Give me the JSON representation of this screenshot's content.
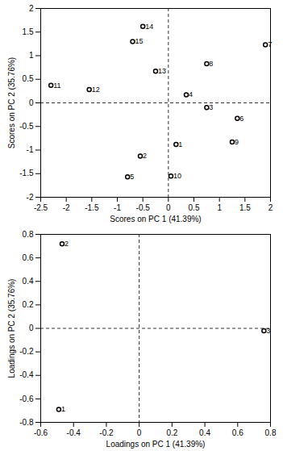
{
  "chart_data": [
    {
      "type": "scatter",
      "x_label": "Scores on PC 1 (41.39%)",
      "y_label": "Scores on PC 2 (35.76%)",
      "point_labels": [
        "1",
        "2",
        "3",
        "4",
        "5",
        "6",
        "7",
        "8",
        "9",
        "10",
        "11",
        "12",
        "13",
        "14",
        "15"
      ],
      "x": [
        0.15,
        -0.55,
        0.75,
        0.35,
        -0.8,
        1.35,
        1.9,
        0.75,
        1.25,
        0.05,
        -2.3,
        -1.55,
        -0.25,
        -0.5,
        -0.7
      ],
      "values": [
        -0.88,
        -1.13,
        -0.1,
        0.17,
        -1.57,
        -0.33,
        1.23,
        0.83,
        -0.83,
        -1.55,
        0.37,
        0.28,
        0.67,
        1.62,
        1.3
      ],
      "xlim": [
        -2.5,
        2
      ],
      "xticks": [
        -2.5,
        -2,
        -1.5,
        -1,
        -0.5,
        0,
        0.5,
        1,
        1.5,
        2
      ],
      "ylim": [
        -2,
        2
      ],
      "yticks": [
        -2,
        -1.5,
        -1,
        -0.5,
        0,
        0.5,
        1,
        1.5,
        2
      ],
      "color": "#000000",
      "marker": "circle"
    },
    {
      "type": "scatter",
      "x_label": "Loadings on PC 1 (41.39%)",
      "y_label": "Loadings on PC 2 (35.76%)",
      "point_labels": [
        "1",
        "2",
        "3"
      ],
      "x": [
        -0.49,
        -0.47,
        0.76
      ],
      "values": [
        -0.69,
        0.72,
        -0.02
      ],
      "xlim": [
        -0.6,
        0.8
      ],
      "xticks": [
        -0.6,
        -0.4,
        -0.2,
        0,
        0.2,
        0.4,
        0.6,
        0.8
      ],
      "ylim": [
        -0.8,
        0.8
      ],
      "yticks": [
        -0.8,
        -0.6,
        -0.4,
        -0.2,
        0,
        0.2,
        0.4,
        0.6,
        0.8
      ],
      "color": "#000000",
      "marker": "circle"
    }
  ]
}
